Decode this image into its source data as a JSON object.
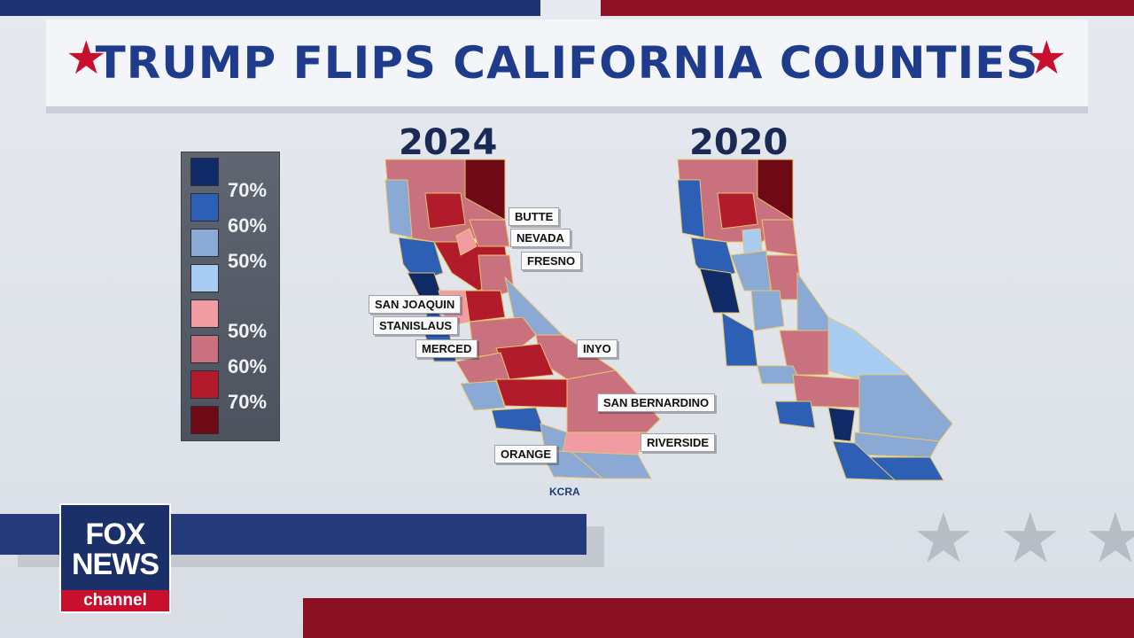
{
  "title": "TRUMP FLIPS CALIFORNIA COUNTIES",
  "maps": [
    {
      "year": "2024"
    },
    {
      "year": "2020"
    }
  ],
  "legend": {
    "items": [
      {
        "label": "",
        "color": "#0f2a66"
      },
      {
        "label": "70%",
        "color": "#2d5fb5"
      },
      {
        "label": "60%",
        "color": "#8aa9d4"
      },
      {
        "label": "50%",
        "color": "#a9cdf2"
      },
      {
        "label": "",
        "color": "#f19ba3"
      },
      {
        "label": "50%",
        "color": "#c9717f"
      },
      {
        "label": "60%",
        "color": "#b11b2c"
      },
      {
        "label": "70%",
        "color": "#6d0a16"
      }
    ]
  },
  "callouts": [
    "BUTTE",
    "NEVADA",
    "FRESNO",
    "SAN JOAQUIN",
    "STANISLAUS",
    "MERCED",
    "INYO",
    "SAN BERNARDINO",
    "RIVERSIDE",
    "ORANGE"
  ],
  "source": "KCRA",
  "logo": {
    "line1": "FOX",
    "line2": "NEWS",
    "line3": "channel"
  },
  "colors": {
    "title": "#1f3c8c",
    "accent_red": "#c8102e",
    "navy": "#1b2f68"
  }
}
